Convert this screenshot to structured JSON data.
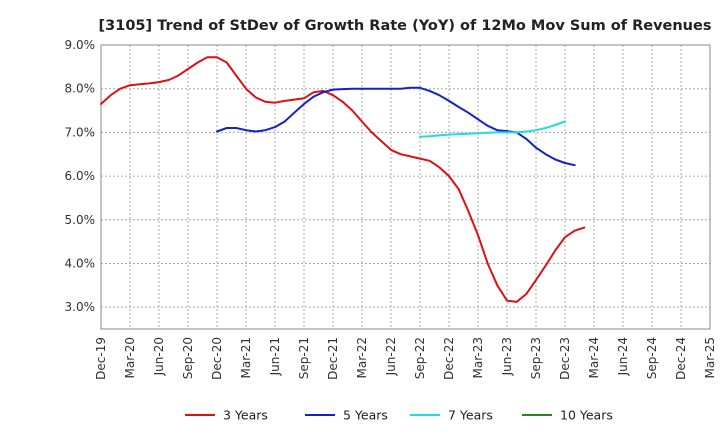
{
  "chart_data": {
    "type": "line",
    "title": "[3105]  Trend of StDev of Growth Rate (YoY) of 12Mo Mov Sum of Revenues",
    "xlabel": "",
    "ylabel": "",
    "x_ticks": [
      "Dec-19",
      "Mar-20",
      "Jun-20",
      "Sep-20",
      "Dec-20",
      "Mar-21",
      "Jun-21",
      "Sep-21",
      "Dec-21",
      "Mar-22",
      "Jun-22",
      "Sep-22",
      "Dec-22",
      "Mar-23",
      "Jun-23",
      "Sep-23",
      "Dec-23",
      "Mar-24",
      "Jun-24",
      "Sep-24",
      "Dec-24",
      "Mar-25"
    ],
    "y_ticks": [
      "3.0%",
      "4.0%",
      "5.0%",
      "6.0%",
      "7.0%",
      "8.0%",
      "9.0%"
    ],
    "y_tick_values": [
      3,
      4,
      5,
      6,
      7,
      8,
      9
    ],
    "ylim": [
      2.5,
      9.0
    ],
    "grid": true,
    "legend_position": "bottom",
    "series": [
      {
        "name": "3 Years",
        "color": "#dd1111",
        "points": [
          [
            0,
            7.65
          ],
          [
            1,
            7.85
          ],
          [
            2,
            8.0
          ],
          [
            3,
            8.08
          ],
          [
            4,
            8.1
          ],
          [
            5,
            8.12
          ],
          [
            6,
            8.15
          ],
          [
            7,
            8.2
          ],
          [
            8,
            8.3
          ],
          [
            9,
            8.45
          ],
          [
            10,
            8.6
          ],
          [
            11,
            8.72
          ],
          [
            12,
            8.72
          ],
          [
            13,
            8.6
          ],
          [
            14,
            8.3
          ],
          [
            15,
            8.0
          ],
          [
            16,
            7.8
          ],
          [
            17,
            7.7
          ],
          [
            18,
            7.68
          ],
          [
            19,
            7.72
          ],
          [
            20,
            7.75
          ],
          [
            21,
            7.78
          ],
          [
            22,
            7.92
          ],
          [
            23,
            7.95
          ],
          [
            24,
            7.85
          ],
          [
            25,
            7.7
          ],
          [
            26,
            7.5
          ],
          [
            27,
            7.25
          ],
          [
            28,
            7.0
          ],
          [
            29,
            6.8
          ],
          [
            30,
            6.6
          ],
          [
            31,
            6.5
          ],
          [
            32,
            6.45
          ],
          [
            33,
            6.4
          ],
          [
            34,
            6.35
          ],
          [
            35,
            6.2
          ],
          [
            36,
            6.0
          ],
          [
            37,
            5.7
          ],
          [
            38,
            5.2
          ],
          [
            39,
            4.65
          ],
          [
            40,
            4.0
          ],
          [
            41,
            3.5
          ],
          [
            42,
            3.15
          ],
          [
            43,
            3.12
          ],
          [
            44,
            3.3
          ],
          [
            45,
            3.62
          ],
          [
            46,
            3.95
          ],
          [
            47,
            4.3
          ],
          [
            48,
            4.6
          ],
          [
            49,
            4.75
          ],
          [
            50,
            4.82
          ]
        ]
      },
      {
        "name": "5 Years",
        "color": "#1122cc",
        "points": [
          [
            12,
            7.02
          ],
          [
            13,
            7.1
          ],
          [
            14,
            7.1
          ],
          [
            15,
            7.05
          ],
          [
            16,
            7.02
          ],
          [
            17,
            7.05
          ],
          [
            18,
            7.12
          ],
          [
            19,
            7.25
          ],
          [
            20,
            7.45
          ],
          [
            21,
            7.65
          ],
          [
            22,
            7.82
          ],
          [
            23,
            7.92
          ],
          [
            24,
            7.98
          ],
          [
            25,
            7.99
          ],
          [
            26,
            8.0
          ],
          [
            27,
            8.0
          ],
          [
            28,
            8.0
          ],
          [
            29,
            8.0
          ],
          [
            30,
            8.0
          ],
          [
            31,
            8.0
          ],
          [
            32,
            8.02
          ],
          [
            33,
            8.02
          ],
          [
            34,
            7.95
          ],
          [
            35,
            7.85
          ],
          [
            36,
            7.72
          ],
          [
            37,
            7.58
          ],
          [
            38,
            7.45
          ],
          [
            39,
            7.3
          ],
          [
            40,
            7.15
          ],
          [
            41,
            7.05
          ],
          [
            42,
            7.03
          ],
          [
            43,
            7.0
          ],
          [
            44,
            6.85
          ],
          [
            45,
            6.65
          ],
          [
            46,
            6.5
          ],
          [
            47,
            6.38
          ],
          [
            48,
            6.3
          ],
          [
            49,
            6.25
          ]
        ]
      },
      {
        "name": "7 Years",
        "color": "#22dddd",
        "points": [
          [
            33,
            6.9
          ],
          [
            34,
            6.91
          ],
          [
            35,
            6.93
          ],
          [
            36,
            6.95
          ],
          [
            37,
            6.96
          ],
          [
            38,
            6.97
          ],
          [
            39,
            6.98
          ],
          [
            40,
            6.99
          ],
          [
            41,
            7.0
          ],
          [
            42,
            7.0
          ],
          [
            43,
            7.0
          ],
          [
            44,
            7.02
          ],
          [
            45,
            7.05
          ],
          [
            46,
            7.1
          ],
          [
            47,
            7.17
          ],
          [
            48,
            7.25
          ]
        ]
      },
      {
        "name": "10 Years",
        "color": "#228822",
        "points": []
      }
    ]
  }
}
